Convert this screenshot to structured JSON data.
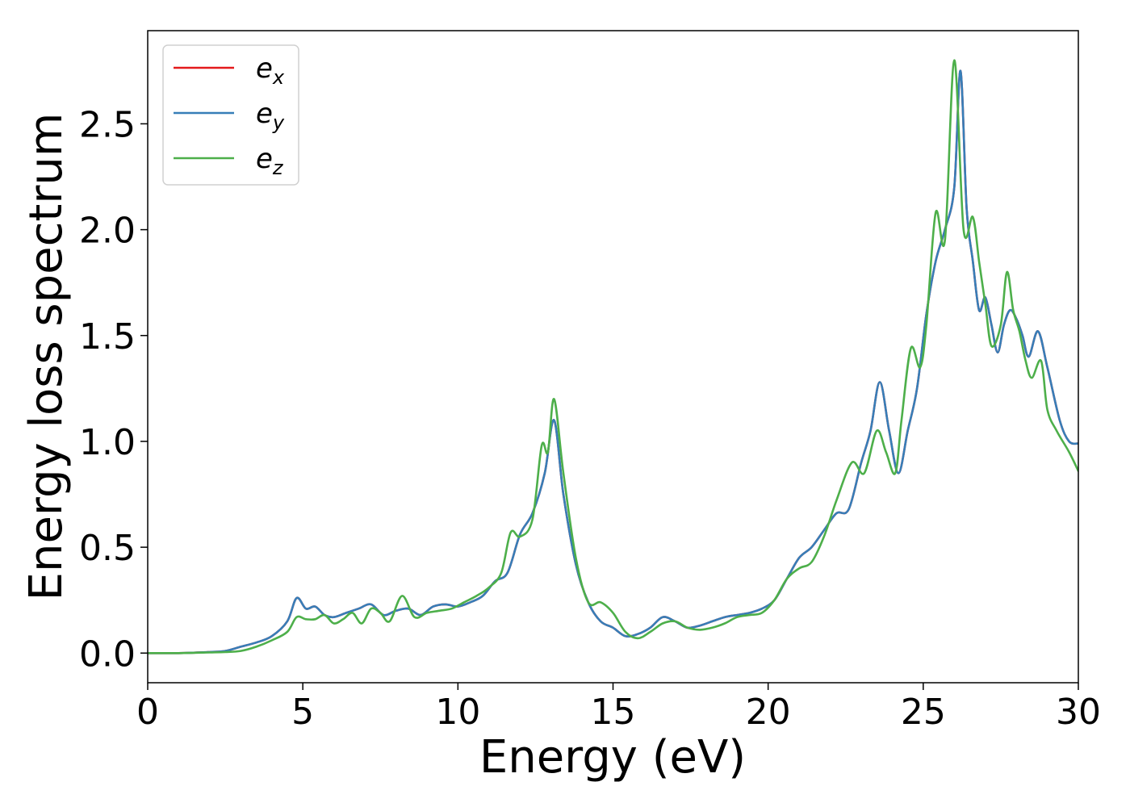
{
  "chart_data": {
    "type": "line",
    "xlabel": "Energy (eV)",
    "ylabel": "Energy loss spectrum",
    "xlim": [
      0,
      30
    ],
    "ylim": [
      -0.14,
      2.94
    ],
    "xticks": [
      "0",
      "5",
      "10",
      "15",
      "20",
      "25",
      "30"
    ],
    "yticks": [
      "0.0",
      "0.5",
      "1.0",
      "1.5",
      "2.0",
      "2.5"
    ],
    "grid": false,
    "legend_position": "top-left",
    "series": [
      {
        "name": "e",
        "sub": "x",
        "color": "#e41a1c",
        "x": [
          0,
          1,
          2,
          2.5,
          3,
          3.5,
          4,
          4.5,
          4.8,
          5.1,
          5.4,
          5.7,
          6,
          6.4,
          6.8,
          7.2,
          7.6,
          8,
          8.4,
          8.8,
          9.2,
          9.6,
          10,
          10.4,
          10.8,
          11.2,
          11.6,
          12,
          12.4,
          12.8,
          13.1,
          13.4,
          13.8,
          14.2,
          14.6,
          15,
          15.4,
          15.8,
          16.2,
          16.6,
          17,
          17.4,
          17.8,
          18.2,
          18.6,
          19,
          19.4,
          19.8,
          20.2,
          20.6,
          21,
          21.4,
          21.8,
          22.2,
          22.6,
          23,
          23.3,
          23.6,
          23.9,
          24.2,
          24.5,
          24.8,
          25.1,
          25.4,
          25.7,
          26,
          26.2,
          26.4,
          26.6,
          26.8,
          27,
          27.2,
          27.4,
          27.6,
          27.8,
          28,
          28.2,
          28.4,
          28.7,
          29,
          29.4,
          29.7,
          30
        ],
        "values": [
          0,
          0,
          0.005,
          0.01,
          0.03,
          0.05,
          0.08,
          0.15,
          0.26,
          0.21,
          0.22,
          0.18,
          0.17,
          0.19,
          0.21,
          0.23,
          0.18,
          0.2,
          0.21,
          0.18,
          0.22,
          0.23,
          0.22,
          0.24,
          0.27,
          0.34,
          0.38,
          0.56,
          0.66,
          0.85,
          1.1,
          0.75,
          0.42,
          0.24,
          0.15,
          0.12,
          0.08,
          0.09,
          0.12,
          0.17,
          0.15,
          0.12,
          0.13,
          0.15,
          0.17,
          0.18,
          0.19,
          0.21,
          0.25,
          0.35,
          0.45,
          0.5,
          0.58,
          0.66,
          0.68,
          0.9,
          1.05,
          1.28,
          1.05,
          0.85,
          1.05,
          1.25,
          1.6,
          1.85,
          2.0,
          2.2,
          2.75,
          2.1,
          1.85,
          1.62,
          1.68,
          1.55,
          1.42,
          1.55,
          1.62,
          1.58,
          1.5,
          1.4,
          1.52,
          1.35,
          1.1,
          1.0,
          0.99
        ]
      },
      {
        "name": "e",
        "sub": "y",
        "color": "#377eb8",
        "x": [
          0,
          1,
          2,
          2.5,
          3,
          3.5,
          4,
          4.5,
          4.8,
          5.1,
          5.4,
          5.7,
          6,
          6.4,
          6.8,
          7.2,
          7.6,
          8,
          8.4,
          8.8,
          9.2,
          9.6,
          10,
          10.4,
          10.8,
          11.2,
          11.6,
          12,
          12.4,
          12.8,
          13.1,
          13.4,
          13.8,
          14.2,
          14.6,
          15,
          15.4,
          15.8,
          16.2,
          16.6,
          17,
          17.4,
          17.8,
          18.2,
          18.6,
          19,
          19.4,
          19.8,
          20.2,
          20.6,
          21,
          21.4,
          21.8,
          22.2,
          22.6,
          23,
          23.3,
          23.6,
          23.9,
          24.2,
          24.5,
          24.8,
          25.1,
          25.4,
          25.7,
          26,
          26.2,
          26.4,
          26.6,
          26.8,
          27,
          27.2,
          27.4,
          27.6,
          27.8,
          28,
          28.2,
          28.4,
          28.7,
          29,
          29.4,
          29.7,
          30
        ],
        "values": [
          0,
          0,
          0.005,
          0.01,
          0.03,
          0.05,
          0.08,
          0.15,
          0.26,
          0.21,
          0.22,
          0.18,
          0.17,
          0.19,
          0.21,
          0.23,
          0.18,
          0.2,
          0.21,
          0.18,
          0.22,
          0.23,
          0.22,
          0.24,
          0.27,
          0.34,
          0.38,
          0.56,
          0.66,
          0.85,
          1.1,
          0.75,
          0.42,
          0.24,
          0.15,
          0.12,
          0.08,
          0.09,
          0.12,
          0.17,
          0.15,
          0.12,
          0.13,
          0.15,
          0.17,
          0.18,
          0.19,
          0.21,
          0.25,
          0.35,
          0.45,
          0.5,
          0.58,
          0.66,
          0.68,
          0.9,
          1.05,
          1.28,
          1.05,
          0.85,
          1.05,
          1.25,
          1.6,
          1.85,
          2.0,
          2.2,
          2.75,
          2.1,
          1.85,
          1.62,
          1.68,
          1.55,
          1.42,
          1.55,
          1.62,
          1.58,
          1.5,
          1.4,
          1.52,
          1.35,
          1.1,
          1.0,
          0.99
        ]
      },
      {
        "name": "e",
        "sub": "z",
        "color": "#4daf4a",
        "x": [
          0,
          1,
          2,
          2.5,
          3,
          3.5,
          4,
          4.5,
          4.8,
          5.1,
          5.4,
          5.7,
          6,
          6.3,
          6.6,
          6.9,
          7.2,
          7.5,
          7.8,
          8.2,
          8.6,
          9,
          9.4,
          9.8,
          10.2,
          10.6,
          11,
          11.4,
          11.7,
          12,
          12.4,
          12.7,
          12.9,
          13.1,
          13.4,
          13.8,
          14.2,
          14.6,
          15,
          15.4,
          15.8,
          16.2,
          16.6,
          17,
          17.4,
          17.8,
          18.2,
          18.6,
          19,
          19.4,
          19.8,
          20.2,
          20.6,
          21,
          21.4,
          21.8,
          22.2,
          22.7,
          23.1,
          23.5,
          23.8,
          24.1,
          24.3,
          24.6,
          24.9,
          25.1,
          25.4,
          25.7,
          26,
          26.3,
          26.6,
          26.8,
          27,
          27.2,
          27.5,
          27.7,
          27.9,
          28.1,
          28.3,
          28.5,
          28.8,
          29,
          29.3,
          29.7,
          30
        ],
        "values": [
          0,
          0,
          0.003,
          0.005,
          0.01,
          0.03,
          0.06,
          0.1,
          0.17,
          0.16,
          0.16,
          0.18,
          0.14,
          0.16,
          0.19,
          0.14,
          0.21,
          0.19,
          0.15,
          0.27,
          0.17,
          0.19,
          0.2,
          0.21,
          0.24,
          0.27,
          0.31,
          0.38,
          0.57,
          0.55,
          0.63,
          0.98,
          0.95,
          1.2,
          0.85,
          0.45,
          0.24,
          0.24,
          0.19,
          0.1,
          0.07,
          0.1,
          0.14,
          0.15,
          0.12,
          0.11,
          0.12,
          0.14,
          0.17,
          0.18,
          0.19,
          0.25,
          0.35,
          0.4,
          0.43,
          0.55,
          0.72,
          0.9,
          0.85,
          1.05,
          0.95,
          0.85,
          1.1,
          1.44,
          1.35,
          1.55,
          2.08,
          1.95,
          2.8,
          2.0,
          2.06,
          1.85,
          1.65,
          1.45,
          1.55,
          1.8,
          1.62,
          1.52,
          1.38,
          1.3,
          1.38,
          1.15,
          1.05,
          0.95,
          0.86
        ]
      }
    ]
  }
}
